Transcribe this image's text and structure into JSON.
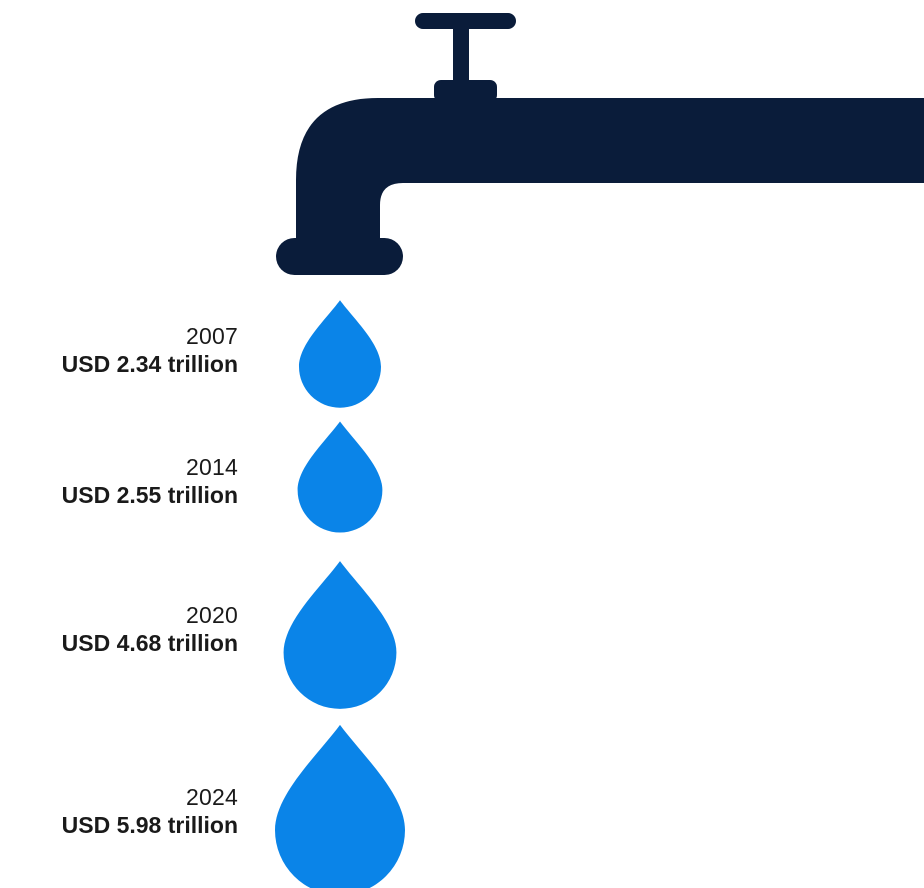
{
  "colors": {
    "faucet": "#0a1c3a",
    "drop": "#0a84e8",
    "text": "#1a1a1a"
  },
  "icons": {
    "faucet": "faucet-icon",
    "drop": "water-drop-icon"
  },
  "chart_data": {
    "type": "pictograph",
    "title": "",
    "categories": [
      "2007",
      "2014",
      "2020",
      "2024"
    ],
    "values": [
      2.34,
      2.55,
      4.68,
      5.98
    ],
    "unit": "USD trillion",
    "points": [
      {
        "year": "2007",
        "value": 2.34,
        "amount_label": "USD 2.34 trillion"
      },
      {
        "year": "2014",
        "value": 2.55,
        "amount_label": "USD 2.55 trillion"
      },
      {
        "year": "2020",
        "value": 4.68,
        "amount_label": "USD 4.68 trillion"
      },
      {
        "year": "2024",
        "value": 5.98,
        "amount_label": "USD 5.98 trillion"
      }
    ]
  }
}
